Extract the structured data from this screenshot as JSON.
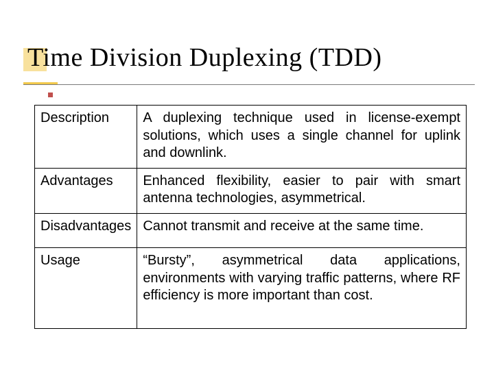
{
  "title": "Time Division Duplexing (TDD)",
  "table": {
    "rows": [
      {
        "label": "Description",
        "value": "A duplexing technique used in license-exempt solutions, which uses a single channel for uplink and downlink."
      },
      {
        "label": "Advantages",
        "value": "Enhanced flexibility, easier to pair with smart antenna technologies, asymmetrical."
      },
      {
        "label": "Disadvantages",
        "value": "Cannot transmit and receive at the same time."
      },
      {
        "label": "Usage",
        "value": "“Bursty”, asymmetrical data applications, environments with varying traffic patterns, where RF efficiency is more important than cost."
      }
    ]
  },
  "style": {
    "accent_color": "#f2c94c",
    "bullet_color": "#c0504d",
    "title_fontsize": 38,
    "cell_fontsize": 20,
    "border_color": "#000000",
    "background_color": "#ffffff",
    "underline_gray": "#7a7a7a"
  }
}
